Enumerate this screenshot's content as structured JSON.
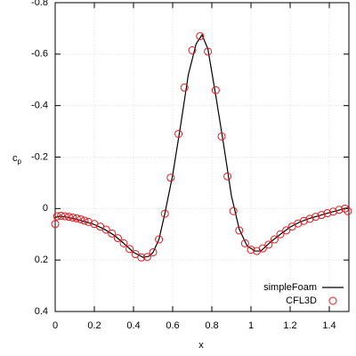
{
  "chart_data": {
    "type": "line-scatter",
    "xlabel": "x",
    "ylabel": "c",
    "ylabel_subscript": "p",
    "xlim": [
      0,
      1.5
    ],
    "xticks": [
      0,
      0.2,
      0.4,
      0.6,
      0.8,
      1,
      1.2,
      1.4
    ],
    "ylim": [
      0.4,
      -0.8
    ],
    "yticks": [
      -0.8,
      -0.6,
      -0.4,
      -0.2,
      0,
      0.2,
      0.4
    ],
    "grid": true,
    "legend": "bottom-right",
    "series": [
      {
        "name": "simpleFoam",
        "type": "line",
        "color": "#000000",
        "x": [
          0,
          0.02,
          0.05,
          0.1,
          0.15,
          0.2,
          0.25,
          0.3,
          0.35,
          0.4,
          0.45,
          0.48,
          0.5,
          0.53,
          0.56,
          0.6,
          0.64,
          0.68,
          0.72,
          0.75,
          0.78,
          0.82,
          0.86,
          0.9,
          0.94,
          0.98,
          1.02,
          1.05,
          1.1,
          1.15,
          1.2,
          1.25,
          1.3,
          1.35,
          1.4,
          1.45,
          1.5
        ],
        "values": [
          0.035,
          0.03,
          0.032,
          0.04,
          0.05,
          0.062,
          0.08,
          0.103,
          0.135,
          0.17,
          0.19,
          0.185,
          0.17,
          0.12,
          0.02,
          -0.13,
          -0.32,
          -0.52,
          -0.64,
          -0.675,
          -0.62,
          -0.44,
          -0.25,
          -0.05,
          0.08,
          0.145,
          0.165,
          0.165,
          0.13,
          0.1,
          0.072,
          0.052,
          0.038,
          0.027,
          0.016,
          0.006,
          -0.005
        ]
      },
      {
        "name": "CFL3D",
        "type": "scatter",
        "color": "#e8161b",
        "x": [
          0,
          0.01,
          0.03,
          0.05,
          0.07,
          0.09,
          0.11,
          0.13,
          0.15,
          0.17,
          0.2,
          0.23,
          0.26,
          0.29,
          0.32,
          0.35,
          0.38,
          0.41,
          0.44,
          0.47,
          0.5,
          0.53,
          0.56,
          0.59,
          0.63,
          0.66,
          0.7,
          0.74,
          0.78,
          0.82,
          0.85,
          0.88,
          0.91,
          0.94,
          0.97,
          1,
          1.03,
          1.06,
          1.09,
          1.12,
          1.15,
          1.18,
          1.21,
          1.24,
          1.27,
          1.3,
          1.33,
          1.36,
          1.39,
          1.42,
          1.45,
          1.48,
          1.495
        ],
        "values": [
          0.06,
          0.03,
          0.028,
          0.03,
          0.032,
          0.035,
          0.038,
          0.042,
          0.047,
          0.052,
          0.06,
          0.07,
          0.082,
          0.097,
          0.115,
          0.135,
          0.157,
          0.177,
          0.19,
          0.188,
          0.17,
          0.12,
          0.02,
          -0.12,
          -0.29,
          -0.47,
          -0.615,
          -0.67,
          -0.61,
          -0.46,
          -0.28,
          -0.125,
          0.01,
          0.085,
          0.135,
          0.16,
          0.165,
          0.155,
          0.14,
          0.12,
          0.1,
          0.085,
          0.07,
          0.058,
          0.048,
          0.04,
          0.032,
          0.025,
          0.018,
          0.012,
          0.005,
          0,
          0.01
        ]
      }
    ]
  }
}
